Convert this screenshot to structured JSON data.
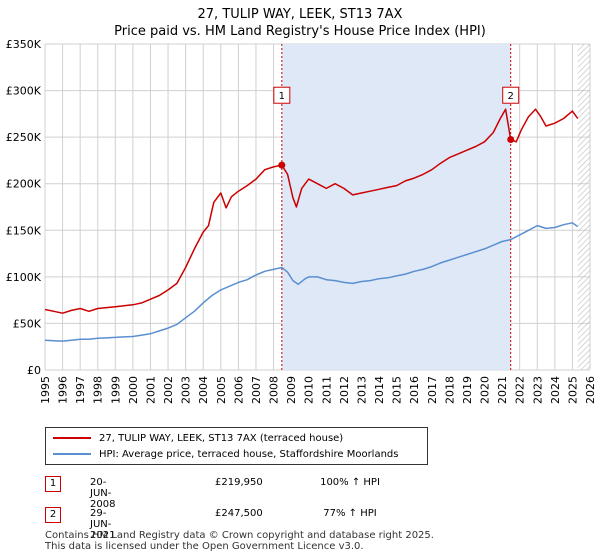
{
  "title_line1": "27, TULIP WAY, LEEK, ST13 7AX",
  "title_line2": "Price paid vs. HM Land Registry's House Price Index (HPI)",
  "legend": {
    "property": "27, TULIP WAY, LEEK, ST13 7AX (terraced house)",
    "hpi": "HPI: Average price, terraced house, Staffordshire Moorlands"
  },
  "transactions": [
    {
      "num": "1",
      "date": "20-JUN-2008",
      "price": "£219,950",
      "hpi": "100% ↑ HPI"
    },
    {
      "num": "2",
      "date": "29-JUN-2021",
      "price": "£247,500",
      "hpi": "77% ↑ HPI"
    }
  ],
  "footer": {
    "line1": "Contains HM Land Registry data © Crown copyright and database right 2025.",
    "line2": "This data is licensed under the Open Government Licence v3.0."
  },
  "colors": {
    "property": "#cc0000",
    "hpi": "#5b8fd0",
    "shade": "#dfe8f7",
    "grid": "#d0d0d0"
  },
  "chart_data": {
    "type": "line",
    "xlim": [
      1995,
      2026
    ],
    "ylim": [
      0,
      350000
    ],
    "xticks": [
      1995,
      1996,
      1997,
      1998,
      1999,
      2000,
      2001,
      2002,
      2003,
      2004,
      2005,
      2006,
      2007,
      2008,
      2009,
      2010,
      2011,
      2012,
      2013,
      2014,
      2015,
      2016,
      2017,
      2018,
      2019,
      2020,
      2021,
      2022,
      2023,
      2024,
      2025,
      2026
    ],
    "yticks": [
      {
        "value": 0,
        "label": "£0"
      },
      {
        "value": 50000,
        "label": "£50K"
      },
      {
        "value": 100000,
        "label": "£100K"
      },
      {
        "value": 150000,
        "label": "£150K"
      },
      {
        "value": 200000,
        "label": "£200K"
      },
      {
        "value": 250000,
        "label": "£250K"
      },
      {
        "value": 300000,
        "label": "£300K"
      },
      {
        "value": 350000,
        "label": "£350K"
      }
    ],
    "markers": [
      {
        "label": "1",
        "x": 2008.47,
        "y": 219950
      },
      {
        "label": "2",
        "x": 2021.49,
        "y": 247500
      }
    ],
    "shaded_regions": [
      [
        2008.47,
        2021.49
      ]
    ],
    "hatched_from": 2025.3,
    "series": [
      {
        "name": "27, TULIP WAY, LEEK, ST13 7AX (terraced house)",
        "color": "#cc0000",
        "points": [
          [
            1995.0,
            65000
          ],
          [
            1995.5,
            63000
          ],
          [
            1996.0,
            61000
          ],
          [
            1996.5,
            64000
          ],
          [
            1997.0,
            66000
          ],
          [
            1997.5,
            63000
          ],
          [
            1998.0,
            66000
          ],
          [
            1998.5,
            67000
          ],
          [
            1999.0,
            68000
          ],
          [
            1999.5,
            69000
          ],
          [
            2000.0,
            70000
          ],
          [
            2000.5,
            72000
          ],
          [
            2001.0,
            76000
          ],
          [
            2001.5,
            80000
          ],
          [
            2002.0,
            86000
          ],
          [
            2002.5,
            93000
          ],
          [
            2003.0,
            110000
          ],
          [
            2003.5,
            130000
          ],
          [
            2004.0,
            148000
          ],
          [
            2004.3,
            155000
          ],
          [
            2004.6,
            180000
          ],
          [
            2005.0,
            190000
          ],
          [
            2005.3,
            174000
          ],
          [
            2005.6,
            186000
          ],
          [
            2006.0,
            192000
          ],
          [
            2006.5,
            198000
          ],
          [
            2007.0,
            205000
          ],
          [
            2007.5,
            215000
          ],
          [
            2008.0,
            218000
          ],
          [
            2008.47,
            219950
          ],
          [
            2008.8,
            210000
          ],
          [
            2009.1,
            185000
          ],
          [
            2009.3,
            175000
          ],
          [
            2009.6,
            195000
          ],
          [
            2010.0,
            205000
          ],
          [
            2010.5,
            200000
          ],
          [
            2011.0,
            195000
          ],
          [
            2011.5,
            200000
          ],
          [
            2012.0,
            195000
          ],
          [
            2012.5,
            188000
          ],
          [
            2013.0,
            190000
          ],
          [
            2013.5,
            192000
          ],
          [
            2014.0,
            194000
          ],
          [
            2014.5,
            196000
          ],
          [
            2015.0,
            198000
          ],
          [
            2015.5,
            203000
          ],
          [
            2016.0,
            206000
          ],
          [
            2016.5,
            210000
          ],
          [
            2017.0,
            215000
          ],
          [
            2017.5,
            222000
          ],
          [
            2018.0,
            228000
          ],
          [
            2018.5,
            232000
          ],
          [
            2019.0,
            236000
          ],
          [
            2019.5,
            240000
          ],
          [
            2020.0,
            245000
          ],
          [
            2020.5,
            255000
          ],
          [
            2020.9,
            270000
          ],
          [
            2021.2,
            280000
          ],
          [
            2021.49,
            247500
          ],
          [
            2021.8,
            245000
          ],
          [
            2022.1,
            258000
          ],
          [
            2022.5,
            272000
          ],
          [
            2022.9,
            280000
          ],
          [
            2023.2,
            272000
          ],
          [
            2023.5,
            262000
          ],
          [
            2024.0,
            265000
          ],
          [
            2024.5,
            270000
          ],
          [
            2025.0,
            278000
          ],
          [
            2025.3,
            270000
          ]
        ]
      },
      {
        "name": "HPI: Average price, terraced house, Staffordshire Moorlands",
        "color": "#5b8fd0",
        "points": [
          [
            1995.0,
            32000
          ],
          [
            1995.5,
            31500
          ],
          [
            1996.0,
            31000
          ],
          [
            1996.5,
            32000
          ],
          [
            1997.0,
            33000
          ],
          [
            1997.5,
            33000
          ],
          [
            1998.0,
            34000
          ],
          [
            1998.5,
            34500
          ],
          [
            1999.0,
            35000
          ],
          [
            1999.5,
            35500
          ],
          [
            2000.0,
            36000
          ],
          [
            2000.5,
            37500
          ],
          [
            2001.0,
            39000
          ],
          [
            2001.5,
            42000
          ],
          [
            2002.0,
            45000
          ],
          [
            2002.5,
            49000
          ],
          [
            2003.0,
            56000
          ],
          [
            2003.5,
            63000
          ],
          [
            2004.0,
            72000
          ],
          [
            2004.5,
            80000
          ],
          [
            2005.0,
            86000
          ],
          [
            2005.5,
            90000
          ],
          [
            2006.0,
            94000
          ],
          [
            2006.5,
            97000
          ],
          [
            2007.0,
            102000
          ],
          [
            2007.5,
            106000
          ],
          [
            2008.0,
            108000
          ],
          [
            2008.47,
            110000
          ],
          [
            2008.8,
            105000
          ],
          [
            2009.1,
            96000
          ],
          [
            2009.4,
            92000
          ],
          [
            2009.8,
            98000
          ],
          [
            2010.0,
            100000
          ],
          [
            2010.5,
            100000
          ],
          [
            2011.0,
            97000
          ],
          [
            2011.5,
            96000
          ],
          [
            2012.0,
            94000
          ],
          [
            2012.5,
            93000
          ],
          [
            2013.0,
            95000
          ],
          [
            2013.5,
            96000
          ],
          [
            2014.0,
            98000
          ],
          [
            2014.5,
            99000
          ],
          [
            2015.0,
            101000
          ],
          [
            2015.5,
            103000
          ],
          [
            2016.0,
            106000
          ],
          [
            2016.5,
            108000
          ],
          [
            2017.0,
            111000
          ],
          [
            2017.5,
            115000
          ],
          [
            2018.0,
            118000
          ],
          [
            2018.5,
            121000
          ],
          [
            2019.0,
            124000
          ],
          [
            2019.5,
            127000
          ],
          [
            2020.0,
            130000
          ],
          [
            2020.5,
            134000
          ],
          [
            2021.0,
            138000
          ],
          [
            2021.49,
            140000
          ],
          [
            2022.0,
            145000
          ],
          [
            2022.5,
            150000
          ],
          [
            2023.0,
            155000
          ],
          [
            2023.5,
            152000
          ],
          [
            2024.0,
            153000
          ],
          [
            2024.5,
            156000
          ],
          [
            2025.0,
            158000
          ],
          [
            2025.3,
            154000
          ]
        ]
      }
    ]
  }
}
